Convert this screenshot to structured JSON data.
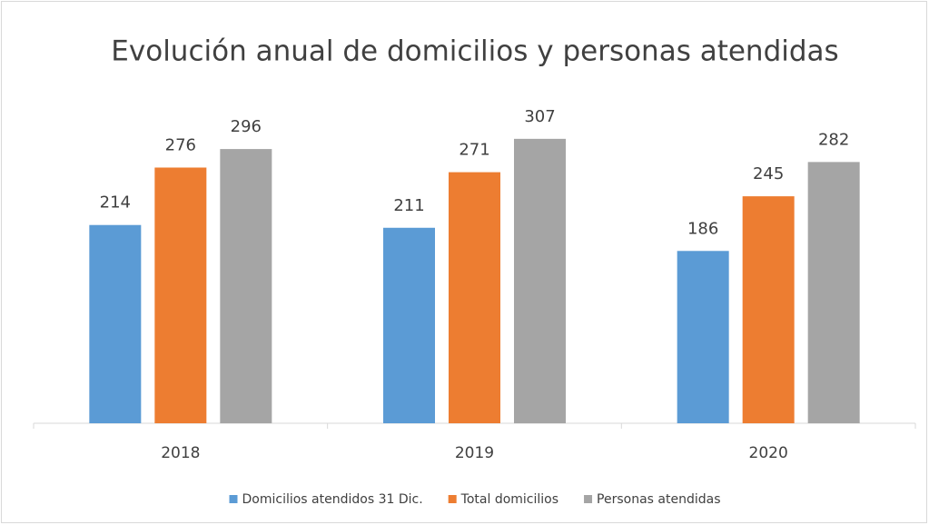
{
  "chart_data": {
    "type": "bar",
    "title": "Evolución anual de domicilios y personas atendidas",
    "categories": [
      "2018",
      "2019",
      "2020"
    ],
    "series": [
      {
        "name": "Domicilios atendidos 31 Dic.",
        "color": "#5b9bd5",
        "values": [
          214,
          211,
          186
        ]
      },
      {
        "name": "Total domicilios",
        "color": "#ed7d31",
        "values": [
          276,
          271,
          245
        ]
      },
      {
        "name": "Personas atendidas",
        "color": "#a5a5a5",
        "values": [
          296,
          307,
          282
        ]
      }
    ],
    "legend": "bottom"
  }
}
